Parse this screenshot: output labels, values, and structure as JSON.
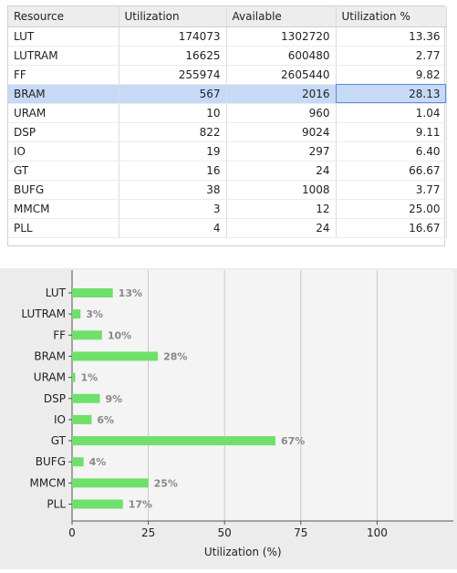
{
  "table": {
    "columns": [
      "Resource",
      "Utilization",
      "Available",
      "Utilization %"
    ],
    "rows": [
      {
        "resource": "LUT",
        "utilization": "174073",
        "available": "1302720",
        "pct": "13.36"
      },
      {
        "resource": "LUTRAM",
        "utilization": "16625",
        "available": "600480",
        "pct": "2.77"
      },
      {
        "resource": "FF",
        "utilization": "255974",
        "available": "2605440",
        "pct": "9.82"
      },
      {
        "resource": "BRAM",
        "utilization": "567",
        "available": "2016",
        "pct": "28.13"
      },
      {
        "resource": "URAM",
        "utilization": "10",
        "available": "960",
        "pct": "1.04"
      },
      {
        "resource": "DSP",
        "utilization": "822",
        "available": "9024",
        "pct": "9.11"
      },
      {
        "resource": "IO",
        "utilization": "19",
        "available": "297",
        "pct": "6.40"
      },
      {
        "resource": "GT",
        "utilization": "16",
        "available": "24",
        "pct": "66.67"
      },
      {
        "resource": "BUFG",
        "utilization": "38",
        "available": "1008",
        "pct": "3.77"
      },
      {
        "resource": "MMCM",
        "utilization": "3",
        "available": "12",
        "pct": "25.00"
      },
      {
        "resource": "PLL",
        "utilization": "4",
        "available": "24",
        "pct": "16.67"
      }
    ],
    "selected_row": "BRAM"
  },
  "colors": {
    "bar": "#6fe06a",
    "label": "#888888",
    "grid": "#c8c8c8",
    "plot_bg": "#f4f4f4",
    "selected_row_bg": "#c6d9f7"
  },
  "chart_data": {
    "type": "bar",
    "orientation": "horizontal",
    "categories": [
      "LUT",
      "LUTRAM",
      "FF",
      "BRAM",
      "URAM",
      "DSP",
      "IO",
      "GT",
      "BUFG",
      "MMCM",
      "PLL"
    ],
    "values": [
      13.36,
      2.77,
      9.82,
      28.13,
      1.04,
      9.11,
      6.4,
      66.67,
      3.77,
      25.0,
      16.67
    ],
    "value_labels": [
      "13%",
      "3%",
      "10%",
      "28%",
      "1%",
      "9%",
      "6%",
      "67%",
      "4%",
      "25%",
      "17%"
    ],
    "xlabel": "Utilization (%)",
    "ylabel": "",
    "title": "",
    "xlim": [
      0,
      125
    ],
    "xticks": [
      0,
      25,
      50,
      75,
      100
    ],
    "grid": true,
    "legend": "none"
  }
}
